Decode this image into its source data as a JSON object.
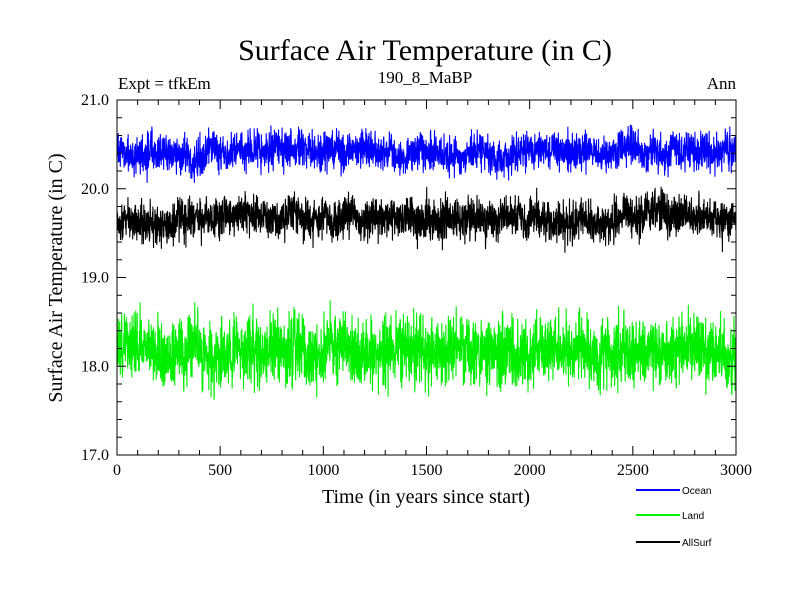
{
  "chart_data": {
    "type": "line",
    "title": "Surface Air Temperature (in C)",
    "subtitle_left": "Expt = tfkEm",
    "subtitle_center": "190_8_MaBP",
    "subtitle_right": "Ann",
    "xlabel": "Time (in years since start)",
    "ylabel": "Surface Air Temperature (in C)",
    "xlim": [
      0,
      3000
    ],
    "ylim": [
      17.0,
      21.0
    ],
    "x_ticks": [
      0,
      500,
      1000,
      1500,
      2000,
      2500,
      3000
    ],
    "y_ticks": [
      "17.0",
      "18.0",
      "19.0",
      "20.0",
      "21.0"
    ],
    "legend_position": "bottom-right, below plot",
    "series": [
      {
        "name": "Ocean",
        "color": "#0000ff",
        "mean": 20.42,
        "noise": 0.12,
        "min": 20.05,
        "max": 20.74
      },
      {
        "name": "Land",
        "color": "#00ee00",
        "mean": 18.18,
        "noise": 0.22,
        "min": 17.5,
        "max": 18.82
      },
      {
        "name": "AllSurf",
        "color": "#000000",
        "mean": 19.68,
        "noise": 0.13,
        "min": 19.22,
        "max": 20.03
      }
    ]
  }
}
